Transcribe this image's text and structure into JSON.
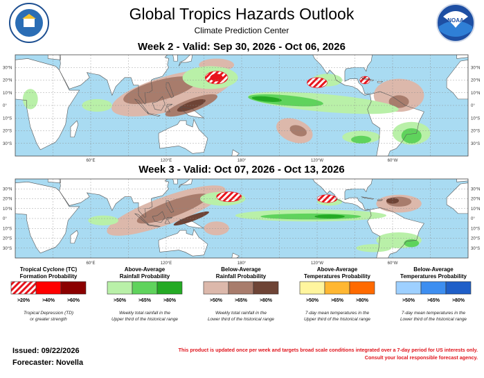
{
  "header": {
    "title": "Global Tropics Hazards Outlook",
    "subtitle": "Climate Prediction Center",
    "logo_text": "NOAA"
  },
  "maps": [
    {
      "heading": "Week 2 - Valid: Sep 30, 2026 - Oct 06, 2026"
    },
    {
      "heading": "Week 3 - Valid: Oct 07, 2026 - Oct 13, 2026"
    }
  ],
  "lat_labels": [
    "30°N",
    "20°N",
    "10°N",
    "0°",
    "10°S",
    "20°S",
    "30°S"
  ],
  "lon_labels": [
    "60°E",
    "120°E",
    "180°",
    "120°W",
    "60°W"
  ],
  "legend": [
    {
      "title": [
        "Tropical Cyclone (TC)",
        "Formation Probability"
      ],
      "swatches": [
        ">20%",
        ">40%",
        ">60%"
      ],
      "description": [
        "Tropical Depression (TD)",
        "or greater strength"
      ]
    },
    {
      "title": [
        "Above-Average",
        "Rainfall Probability"
      ],
      "swatches": [
        ">50%",
        ">65%",
        ">80%"
      ],
      "description": [
        "Weekly total rainfall in the",
        "Upper third of the historical range"
      ]
    },
    {
      "title": [
        "Below-Average",
        "Rainfall Probability"
      ],
      "swatches": [
        ">50%",
        ">65%",
        ">80%"
      ],
      "description": [
        "Weekly total rainfall in the",
        "Lower third of the historical range"
      ]
    },
    {
      "title": [
        "Above-Average",
        "Temperatures Probability"
      ],
      "swatches": [
        ">50%",
        ">65%",
        ">80%"
      ],
      "description": [
        "7-day mean temperatures in the",
        "Upper third of the historical range"
      ]
    },
    {
      "title": [
        "Below-Average",
        "Temperatures Probability"
      ],
      "swatches": [
        ">50%",
        ">65%",
        ">80%"
      ],
      "description": [
        "7-day mean temperatures in the",
        "Lower third of the historical range"
      ]
    }
  ],
  "footer": {
    "issued": "Issued: 09/22/2026",
    "forecaster": "Forecaster: Novella",
    "notice": [
      "This product is updated once per week and targets broad scale conditions integrated over a 7-day period for US interests only.",
      "Consult your local responsible forecast agency."
    ]
  }
}
